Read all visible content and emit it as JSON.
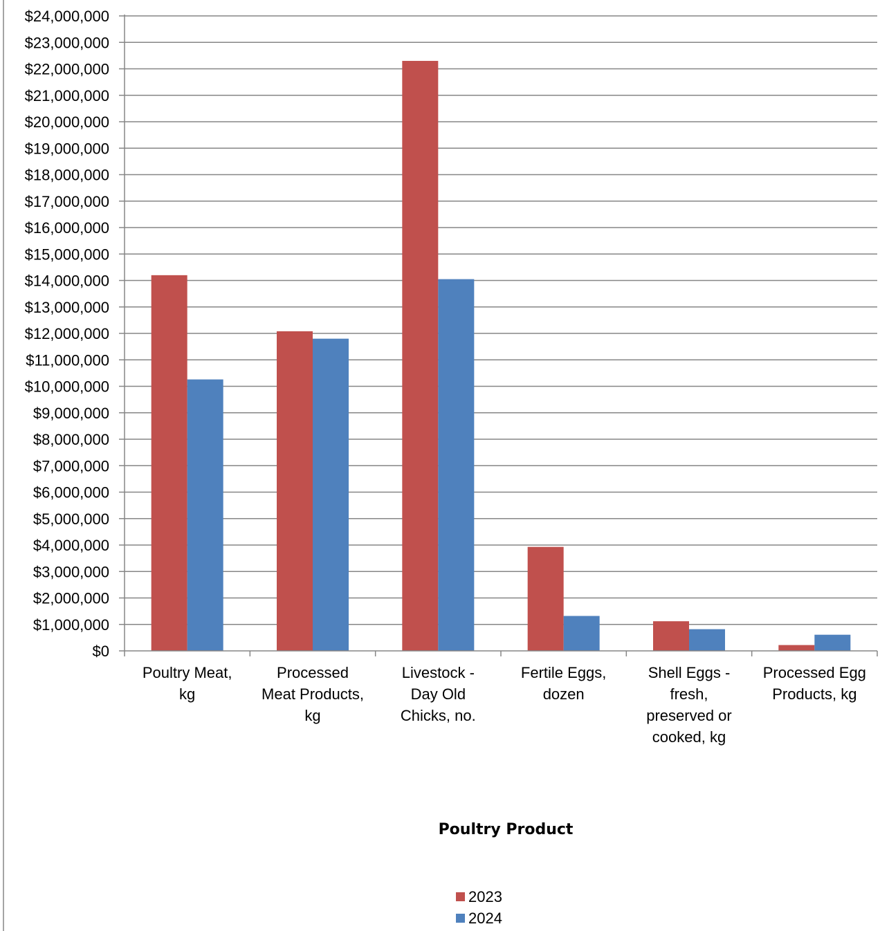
{
  "chart_data": {
    "type": "bar",
    "title": "",
    "xlabel": "Poultry Product",
    "ylabel": "",
    "ylim": [
      0,
      24000000
    ],
    "ytick_step": 1000000,
    "ytick_labels": [
      "$0",
      "$1,000,000",
      "$2,000,000",
      "$3,000,000",
      "$4,000,000",
      "$5,000,000",
      "$6,000,000",
      "$7,000,000",
      "$8,000,000",
      "$9,000,000",
      "$10,000,000",
      "$11,000,000",
      "$12,000,000",
      "$13,000,000",
      "$14,000,000",
      "$15,000,000",
      "$16,000,000",
      "$17,000,000",
      "$18,000,000",
      "$19,000,000",
      "$20,000,000",
      "$21,000,000",
      "$22,000,000",
      "$23,000,000",
      "$24,000,000"
    ],
    "grid": true,
    "legend_position": "bottom",
    "categories": [
      "Poultry Meat, kg",
      "Processed Meat Products, kg",
      "Livestock - Day Old Chicks, no.",
      "Fertile Eggs, dozen",
      "Shell Eggs - fresh, preserved or cooked, kg",
      "Processed Egg Products, kg"
    ],
    "category_label_lines": [
      [
        "Poultry Meat,",
        "kg"
      ],
      [
        "Processed",
        "Meat Products,",
        "kg"
      ],
      [
        "Livestock -",
        "Day Old",
        "Chicks, no."
      ],
      [
        "Fertile Eggs,",
        "dozen"
      ],
      [
        "Shell Eggs -",
        "fresh,",
        "preserved or",
        "cooked, kg"
      ],
      [
        "Processed Egg",
        "Products, kg"
      ]
    ],
    "series": [
      {
        "name": "2023",
        "color": "#c0504d",
        "values": [
          14200000,
          12080000,
          22300000,
          3930000,
          1120000,
          220000
        ]
      },
      {
        "name": "2024",
        "color": "#4f81bd",
        "values": [
          10260000,
          11800000,
          14050000,
          1320000,
          820000,
          610000
        ]
      }
    ]
  }
}
